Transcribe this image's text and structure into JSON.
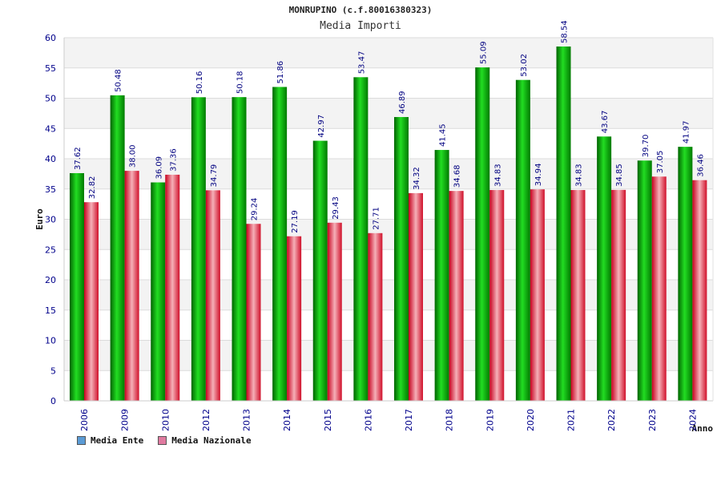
{
  "chart_data": {
    "type": "bar",
    "title": "MONRUPINO (c.f.80016380323)",
    "subtitle": "Media Importi",
    "xlabel": "Anno",
    "ylabel": "Euro",
    "ylim": [
      0,
      60
    ],
    "yticks": [
      0,
      5,
      10,
      15,
      20,
      25,
      30,
      35,
      40,
      45,
      50,
      55,
      60
    ],
    "categories": [
      "2006",
      "2009",
      "2010",
      "2012",
      "2013",
      "2014",
      "2015",
      "2016",
      "2017",
      "2018",
      "2019",
      "2020",
      "2021",
      "2022",
      "2023",
      "2024"
    ],
    "series": [
      {
        "name": "Media Ente",
        "values": [
          37.62,
          50.48,
          36.09,
          50.16,
          50.18,
          51.86,
          42.97,
          53.47,
          46.89,
          41.45,
          55.09,
          53.02,
          58.54,
          43.67,
          39.7,
          41.97
        ],
        "labels": [
          "37.62",
          "50.48",
          "36.09",
          "50.16",
          "50.18",
          "51.86",
          "42.97",
          "53.47",
          "46.89",
          "41.45",
          "55.09",
          "53.02",
          "58.54",
          "43.67",
          "39.70",
          "41.97"
        ]
      },
      {
        "name": "Media Nazionale",
        "values": [
          32.82,
          38.0,
          37.36,
          34.79,
          29.24,
          27.19,
          29.43,
          27.71,
          34.32,
          34.68,
          34.83,
          34.94,
          34.83,
          34.85,
          37.05,
          36.46
        ],
        "labels": [
          "32.82",
          "38.00",
          "37.36",
          "34.79",
          "29.24",
          "27.19",
          "29.43",
          "27.71",
          "34.32",
          "34.68",
          "34.83",
          "34.94",
          "34.83",
          "34.85",
          "37.05",
          "36.46"
        ]
      }
    ],
    "grid": true,
    "legend_position": "bottom-left",
    "colors": {
      "ente": "#00b400",
      "nazionale": "#e8283c",
      "legend_ente": "#5b9bd5",
      "legend_nazionale": "#e07aa0",
      "band": "#f3f3f3",
      "axis_text": "#00008b",
      "label_text": "#000080"
    }
  }
}
